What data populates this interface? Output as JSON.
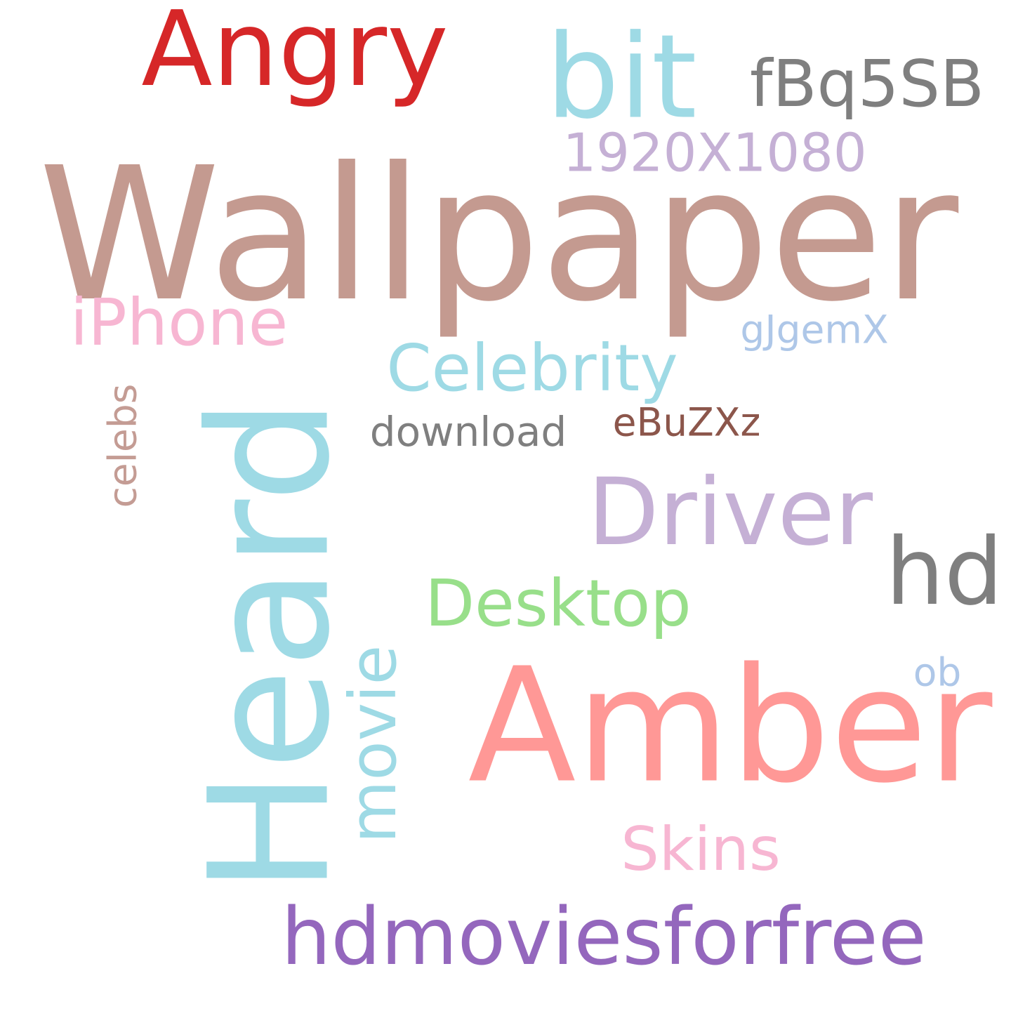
{
  "words": {
    "wallpaper": {
      "text": "Wallpaper",
      "color": "#c49a90"
    },
    "amber": {
      "text": "Amber",
      "color": "#ff9896"
    },
    "heard": {
      "text": "Heard",
      "color": "#9edae5"
    },
    "bit": {
      "text": "bit",
      "color": "#9edae5"
    },
    "angry": {
      "text": "Angry",
      "color": "#d62728"
    },
    "driver": {
      "text": "Driver",
      "color": "#c5b0d5"
    },
    "hd": {
      "text": "hd",
      "color": "#7f7f7f"
    },
    "hdmoviesforfree": {
      "text": "hdmoviesforfree",
      "color": "#9467bd"
    },
    "fbq5sb": {
      "text": "fBq5SB",
      "color": "#7f7f7f"
    },
    "iphone": {
      "text": "iPhone",
      "color": "#f7b6d2"
    },
    "celebrity": {
      "text": "Celebrity",
      "color": "#9edae5"
    },
    "desktop": {
      "text": "Desktop",
      "color": "#98df8a"
    },
    "movie": {
      "text": "movie",
      "color": "#9edae5"
    },
    "skins": {
      "text": "Skins",
      "color": "#f7b6d2"
    },
    "res1920": {
      "text": "1920X1080",
      "color": "#c5b0d5"
    },
    "download": {
      "text": "download",
      "color": "#7f7f7f"
    },
    "ebuzxz": {
      "text": "eBuZXz",
      "color": "#8c564b"
    },
    "gjgemx": {
      "text": "gJgemX",
      "color": "#aec7e8"
    },
    "celebs": {
      "text": "celebs",
      "color": "#c49c94"
    },
    "ob": {
      "text": "ob",
      "color": "#aec7e8"
    }
  }
}
